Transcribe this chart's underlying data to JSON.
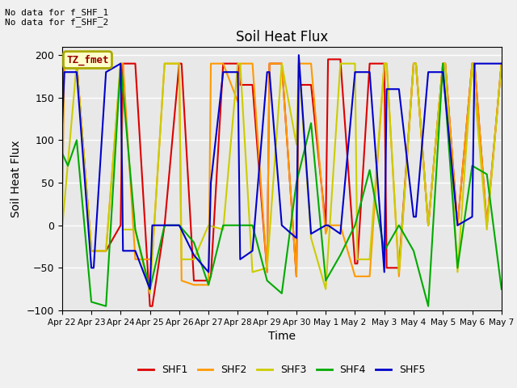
{
  "title": "Soil Heat Flux",
  "xlabel": "Time",
  "ylabel": "Soil Heat Flux",
  "ylim": [
    -100,
    210
  ],
  "yticks": [
    -100,
    -50,
    0,
    50,
    100,
    150,
    200
  ],
  "annotation_text": "No data for f_SHF_1\nNo data for f_SHF_2",
  "legend_label": "TZ_fmet",
  "legend_box_color": "#ffffcc",
  "legend_box_edge": "#aaaa00",
  "series_labels": [
    "SHF1",
    "SHF2",
    "SHF3",
    "SHF4",
    "SHF5"
  ],
  "series_colors": [
    "#dd0000",
    "#ff9900",
    "#cccc00",
    "#00aa00",
    "#0000cc"
  ],
  "background_color": "#e8e8e8",
  "grid_color": "#ffffff",
  "title_fontsize": 12,
  "axis_label_fontsize": 10,
  "tick_dates": [
    "Apr 22",
    "Apr 23",
    "Apr 24",
    "Apr 25",
    "Apr 26",
    "Apr 27",
    "Apr 28",
    "Apr 29",
    "Apr 30",
    "May 1",
    "May 2 ",
    "May 3",
    "May 4",
    "May 5",
    "May 6",
    "May 7"
  ],
  "shf1_x": [
    0,
    0.08,
    0.5,
    1.0,
    1.5,
    2.0,
    2.08,
    2.5,
    3.0,
    3.08,
    3.5,
    4.0,
    4.08,
    4.5,
    5.0,
    5.08,
    5.5,
    6.0,
    6.08,
    6.5,
    7.0,
    7.08,
    7.5,
    8.0,
    8.08,
    8.5,
    9.0,
    9.08,
    9.5,
    10.0,
    10.08,
    10.5,
    11.0,
    11.08,
    11.5,
    12.0,
    12.08,
    12.5,
    13.0,
    13.08,
    13.5,
    14.0,
    14.08,
    14.5,
    15.0
  ],
  "shf1_y": [
    155,
    190,
    190,
    -30,
    -30,
    0,
    190,
    190,
    -95,
    -95,
    0,
    190,
    190,
    -65,
    -65,
    -60,
    190,
    190,
    165,
    165,
    -55,
    190,
    190,
    -60,
    165,
    165,
    0,
    195,
    195,
    -45,
    -45,
    190,
    190,
    -50,
    -50,
    190,
    190,
    0,
    190,
    190,
    0,
    190,
    190,
    0,
    190
  ],
  "shf2_x": [
    0,
    0.08,
    0.5,
    1.0,
    1.5,
    2.0,
    2.08,
    2.5,
    3.0,
    3.08,
    3.5,
    4.0,
    4.08,
    4.5,
    5.0,
    5.08,
    5.5,
    6.0,
    6.08,
    6.5,
    7.0,
    7.08,
    7.5,
    8.0,
    8.08,
    8.5,
    9.0,
    9.08,
    9.5,
    10.0,
    10.5,
    11.0,
    11.08,
    11.5,
    12.0,
    12.08,
    12.5,
    13.0,
    13.08,
    13.5,
    14.0,
    14.08,
    14.5,
    15.0
  ],
  "shf2_y": [
    10,
    190,
    190,
    -30,
    -30,
    190,
    190,
    -40,
    -40,
    -35,
    190,
    190,
    -65,
    -70,
    -70,
    190,
    190,
    145,
    190,
    190,
    -55,
    190,
    190,
    -60,
    190,
    190,
    -10,
    0,
    0,
    -60,
    -60,
    190,
    190,
    -60,
    190,
    190,
    0,
    190,
    190,
    0,
    190,
    190,
    0,
    190
  ],
  "shf3_x": [
    0,
    0.5,
    1.0,
    1.5,
    2.0,
    2.08,
    2.5,
    3.0,
    3.5,
    4.0,
    4.08,
    4.5,
    5.0,
    5.5,
    6.0,
    6.08,
    6.5,
    7.0,
    7.5,
    8.0,
    8.08,
    8.5,
    9.0,
    9.5,
    10.0,
    10.08,
    10.5,
    11.0,
    11.08,
    11.5,
    12.0,
    12.08,
    12.5,
    13.0,
    13.08,
    13.5,
    14.0,
    14.5,
    15.0
  ],
  "shf3_y": [
    -5,
    190,
    -30,
    -30,
    190,
    -5,
    -5,
    -80,
    190,
    190,
    -40,
    -40,
    0,
    -5,
    190,
    190,
    -55,
    -50,
    190,
    95,
    190,
    -15,
    -75,
    190,
    190,
    -40,
    -40,
    190,
    190,
    -55,
    190,
    190,
    0,
    190,
    190,
    -55,
    190,
    -5,
    190
  ],
  "shf4_x": [
    0,
    0.2,
    0.5,
    1.0,
    1.5,
    2.0,
    2.5,
    3.0,
    3.5,
    4.0,
    4.5,
    5.0,
    5.5,
    6.0,
    6.5,
    7.0,
    7.5,
    8.0,
    8.5,
    9.0,
    9.5,
    10.0,
    10.5,
    11.0,
    11.5,
    12.0,
    12.5,
    13.0,
    13.5,
    14.0,
    14.5,
    15.0
  ],
  "shf4_y": [
    85,
    70,
    100,
    -90,
    -95,
    190,
    -5,
    -75,
    0,
    0,
    -20,
    -70,
    0,
    0,
    0,
    -65,
    -80,
    50,
    120,
    -65,
    -35,
    0,
    65,
    -30,
    0,
    -30,
    -95,
    190,
    -50,
    70,
    60,
    -75
  ],
  "shf5_x": [
    0,
    0.08,
    0.5,
    1.0,
    1.08,
    1.5,
    2.0,
    2.08,
    2.5,
    3.0,
    3.08,
    3.5,
    4.0,
    4.5,
    5.0,
    5.08,
    5.5,
    6.0,
    6.08,
    6.5,
    7.0,
    7.08,
    7.5,
    8.0,
    8.08,
    8.5,
    9.0,
    9.08,
    9.5,
    10.0,
    10.5,
    11.0,
    11.08,
    11.5,
    12.0,
    12.08,
    12.5,
    13.0,
    13.5,
    14.0,
    14.08,
    14.5,
    15.0
  ],
  "shf5_y": [
    115,
    180,
    180,
    -50,
    -50,
    180,
    190,
    -30,
    -30,
    -75,
    0,
    0,
    0,
    -35,
    -55,
    50,
    180,
    180,
    -40,
    -30,
    180,
    180,
    0,
    -15,
    200,
    -10,
    0,
    0,
    -10,
    180,
    180,
    -55,
    160,
    160,
    10,
    10,
    180,
    180,
    0,
    10,
    190,
    190,
    190
  ]
}
